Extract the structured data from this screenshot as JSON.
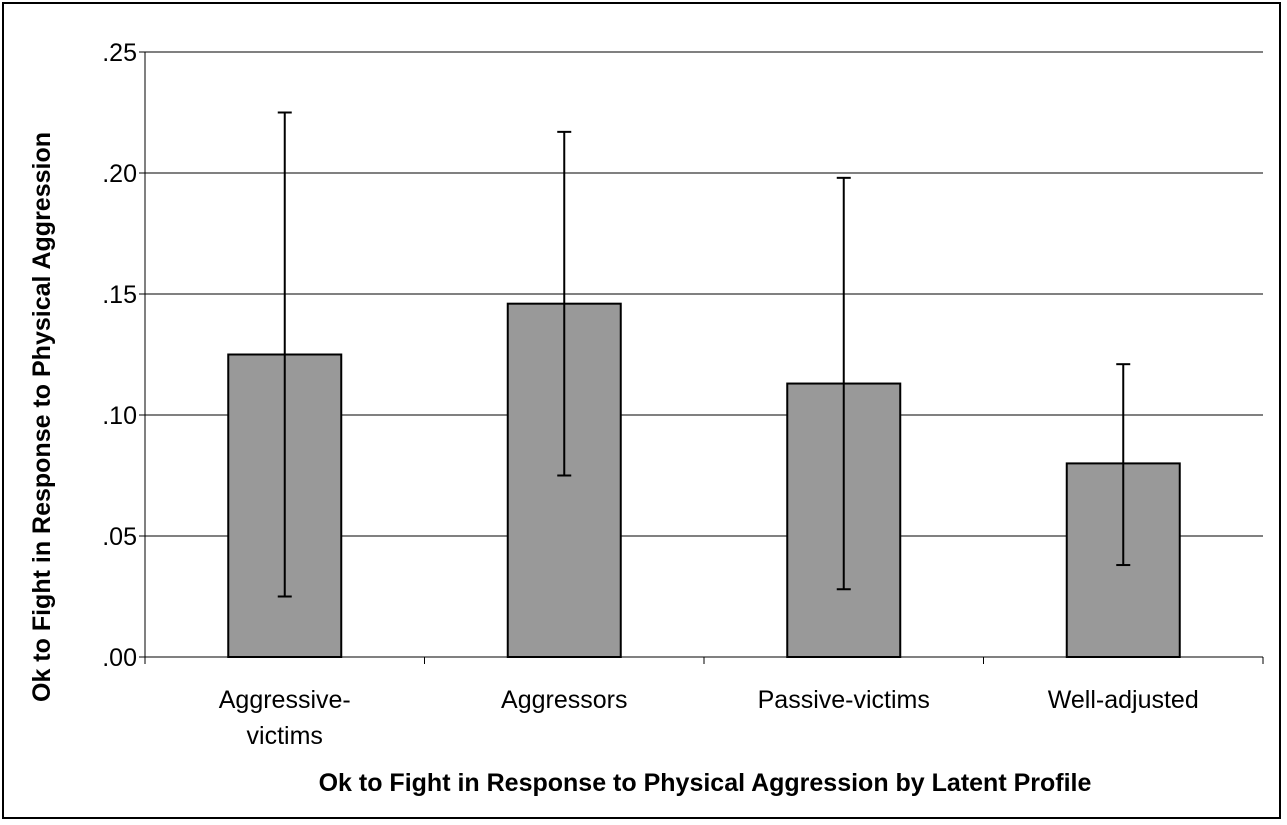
{
  "chart_data": {
    "type": "bar",
    "title": "",
    "xlabel": "Ok to Fight in Response to Physical Aggression by Latent Profile",
    "ylabel": "Ok to Fight in Response to Physical Aggression",
    "categories": [
      [
        "Aggressive-",
        "victims"
      ],
      [
        "Aggressors"
      ],
      [
        "Passive-victims"
      ],
      [
        "Well-adjusted"
      ]
    ],
    "values": [
      0.125,
      0.146,
      0.113,
      0.08
    ],
    "error_low": [
      0.025,
      0.075,
      0.028,
      0.038
    ],
    "error_high": [
      0.225,
      0.217,
      0.198,
      0.121
    ],
    "ylim": [
      0,
      0.25
    ],
    "yticks": [
      0,
      0.05,
      0.1,
      0.15,
      0.2,
      0.25
    ],
    "ytick_labels": [
      ".00",
      ".05",
      ".10",
      ".15",
      ".20",
      ".25"
    ],
    "grid": true,
    "legend": "none",
    "colors": {
      "bar": "#999999",
      "bar_edge": "#000000",
      "grid": "#000000",
      "error_bar": "#000000"
    }
  }
}
